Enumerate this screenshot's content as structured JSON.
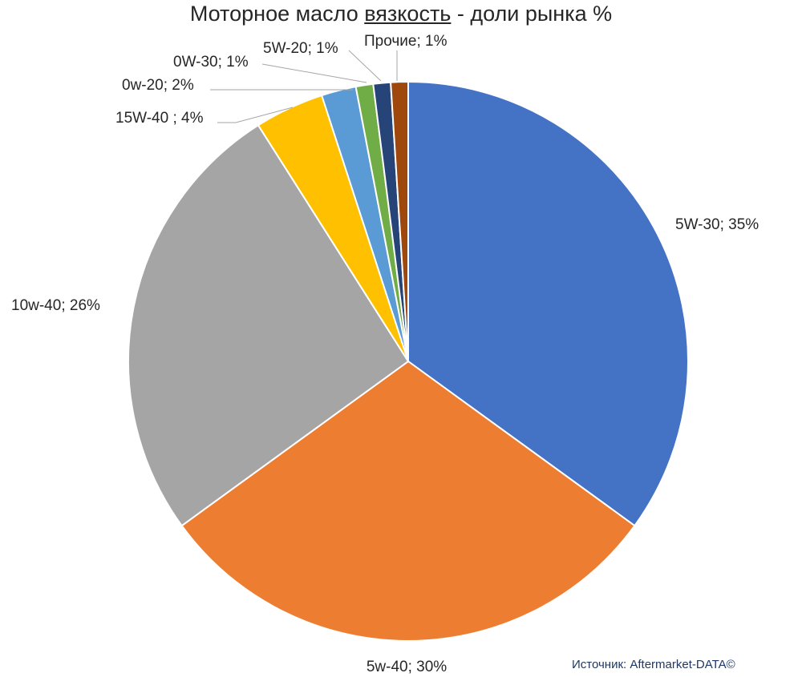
{
  "title": {
    "prefix": "Моторное масло ",
    "emphasis": "вязкость",
    "suffix": " - доли рынка %"
  },
  "source_note": "Источник: Aftermarket-DATA©",
  "chart_data": {
    "type": "pie",
    "title": "Моторное масло вязкость - доли рынка %",
    "slices": [
      {
        "name": "5W-30",
        "value": 35,
        "label": "5W-30; 35%",
        "color": "#4472C4"
      },
      {
        "name": "5w-40",
        "value": 30,
        "label": "5w-40; 30%",
        "color": "#ED7D31"
      },
      {
        "name": "10w-40",
        "value": 26,
        "label": "10w-40; 26%",
        "color": "#A5A5A5"
      },
      {
        "name": "15W-40",
        "value": 4,
        "label": "15W-40  ; 4%",
        "color": "#FFC000"
      },
      {
        "name": "0w-20",
        "value": 2,
        "label": "0w-20; 2%",
        "color": "#5B9BD5"
      },
      {
        "name": "0W-30",
        "value": 1,
        "label": "0W-30; 1%",
        "color": "#70AD47"
      },
      {
        "name": "5W-20",
        "value": 1,
        "label": "5W-20; 1%",
        "color": "#264478"
      },
      {
        "name": "Прочие",
        "value": 1,
        "label": "Прочие; 1%",
        "color": "#9E480E"
      }
    ],
    "start_angle": "12 o'clock",
    "direction": "clockwise",
    "legend": "none (category labels on slices)"
  }
}
